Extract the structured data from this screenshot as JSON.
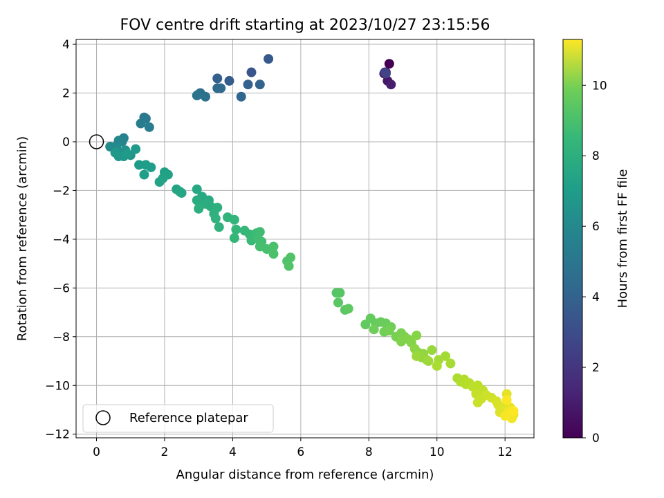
{
  "chart_data": {
    "type": "scatter",
    "title": "FOV centre drift starting at 2023/10/27 23:15:56",
    "xlabel": "Angular distance from reference (arcmin)",
    "ylabel": "Rotation from reference (arcmin)",
    "xlim": [
      -0.6,
      12.85
    ],
    "ylim": [
      -12.15,
      4.2
    ],
    "xticks": [
      0,
      2,
      4,
      6,
      8,
      10,
      12
    ],
    "yticks": [
      -12,
      -10,
      -8,
      -6,
      -4,
      -2,
      0,
      2,
      4
    ],
    "grid": true,
    "colormap": "viridis",
    "colorbar": {
      "label": "Hours from first FF file",
      "min": 0,
      "max": 11.3,
      "ticks": [
        0,
        2,
        4,
        6,
        8,
        10
      ]
    },
    "reference_point": {
      "x": 0,
      "y": 0
    },
    "legend": {
      "position": "lower-left",
      "entries": [
        "Reference platepar"
      ]
    },
    "series": [
      {
        "points": [
          [
            8.6,
            3.2,
            0.0
          ],
          [
            8.5,
            2.85,
            0.3
          ],
          [
            8.45,
            2.8,
            0.5
          ],
          [
            8.55,
            2.5,
            0.7
          ],
          [
            8.65,
            2.35,
            0.9
          ],
          [
            8.47,
            2.85,
            2.0
          ],
          [
            8.5,
            2.8,
            2.3
          ],
          [
            4.55,
            2.85,
            3.0
          ],
          [
            5.05,
            3.4,
            3.2
          ],
          [
            3.9,
            2.5,
            3.3
          ],
          [
            3.55,
            2.6,
            3.4
          ],
          [
            4.45,
            2.35,
            3.5
          ],
          [
            4.8,
            2.35,
            3.6
          ],
          [
            4.25,
            1.85,
            3.7
          ],
          [
            3.55,
            2.2,
            3.8
          ],
          [
            3.65,
            2.2,
            3.9
          ],
          [
            3.0,
            1.95,
            4.0
          ],
          [
            3.05,
            2.0,
            4.1
          ],
          [
            3.2,
            1.85,
            4.2
          ],
          [
            2.95,
            1.9,
            4.3
          ],
          [
            1.4,
            1.0,
            4.5
          ],
          [
            1.45,
            0.95,
            4.6
          ],
          [
            1.3,
            0.75,
            4.7
          ],
          [
            1.55,
            0.6,
            4.8
          ],
          [
            0.8,
            0.15,
            5.0
          ],
          [
            0.75,
            0.0,
            5.1
          ],
          [
            0.65,
            0.05,
            5.2
          ],
          [
            0.55,
            -0.2,
            5.3
          ],
          [
            0.4,
            -0.2,
            5.4
          ],
          [
            0.6,
            -0.3,
            5.5
          ],
          [
            0.7,
            -0.5,
            5.6
          ],
          [
            0.85,
            -0.35,
            5.7
          ],
          [
            1.0,
            -0.55,
            5.8
          ],
          [
            0.65,
            -0.6,
            5.9
          ],
          [
            0.55,
            -0.45,
            6.0
          ],
          [
            0.8,
            -0.6,
            6.05
          ],
          [
            1.15,
            -0.3,
            6.1
          ],
          [
            0.9,
            -0.5,
            6.15
          ],
          [
            1.25,
            -0.95,
            6.2
          ],
          [
            1.45,
            -0.95,
            6.25
          ],
          [
            1.6,
            -1.05,
            6.3
          ],
          [
            1.4,
            -1.35,
            6.35
          ],
          [
            2.0,
            -1.25,
            6.4
          ],
          [
            2.1,
            -1.35,
            6.45
          ],
          [
            1.95,
            -1.5,
            6.5
          ],
          [
            1.85,
            -1.65,
            6.55
          ],
          [
            2.35,
            -1.95,
            6.6
          ],
          [
            2.45,
            -2.05,
            6.65
          ],
          [
            2.5,
            -2.1,
            6.7
          ],
          [
            2.95,
            -1.95,
            6.75
          ],
          [
            3.1,
            -2.25,
            6.8
          ],
          [
            3.3,
            -2.4,
            6.85
          ],
          [
            3.05,
            -2.6,
            6.9
          ],
          [
            2.95,
            -2.4,
            6.95
          ],
          [
            3.2,
            -2.55,
            7.0
          ],
          [
            3.35,
            -2.65,
            7.05
          ],
          [
            3.0,
            -2.75,
            7.1
          ],
          [
            3.55,
            -2.7,
            7.15
          ],
          [
            3.45,
            -2.95,
            7.2
          ],
          [
            3.5,
            -3.15,
            7.25
          ],
          [
            3.6,
            -3.5,
            7.3
          ],
          [
            3.85,
            -3.1,
            7.35
          ],
          [
            4.05,
            -3.2,
            7.4
          ],
          [
            4.1,
            -3.6,
            7.45
          ],
          [
            4.05,
            -3.95,
            7.5
          ],
          [
            4.35,
            -3.65,
            7.55
          ],
          [
            4.5,
            -3.8,
            7.6
          ],
          [
            4.55,
            -4.05,
            7.65
          ],
          [
            4.7,
            -3.75,
            7.7
          ],
          [
            4.8,
            -3.7,
            7.75
          ],
          [
            4.75,
            -4.0,
            7.8
          ],
          [
            4.85,
            -4.1,
            7.85
          ],
          [
            4.8,
            -4.3,
            7.9
          ],
          [
            5.0,
            -4.4,
            7.95
          ],
          [
            5.2,
            -4.3,
            8.0
          ],
          [
            5.2,
            -4.6,
            8.05
          ],
          [
            5.6,
            -4.9,
            8.1
          ],
          [
            5.7,
            -4.75,
            8.15
          ],
          [
            5.65,
            -5.1,
            8.2
          ],
          [
            7.05,
            -6.2,
            8.25
          ],
          [
            7.15,
            -6.2,
            8.3
          ],
          [
            7.1,
            -6.6,
            8.35
          ],
          [
            7.3,
            -6.9,
            8.4
          ],
          [
            7.4,
            -6.85,
            8.45
          ],
          [
            7.9,
            -7.5,
            8.5
          ],
          [
            8.05,
            -7.25,
            8.55
          ],
          [
            8.2,
            -7.45,
            8.6
          ],
          [
            8.35,
            -7.4,
            8.65
          ],
          [
            8.5,
            -7.45,
            8.7
          ],
          [
            8.65,
            -7.6,
            8.75
          ],
          [
            8.15,
            -7.7,
            8.8
          ],
          [
            8.45,
            -7.8,
            8.85
          ],
          [
            8.6,
            -7.75,
            8.9
          ],
          [
            8.8,
            -8.0,
            8.95
          ],
          [
            8.95,
            -7.85,
            9.0
          ],
          [
            9.05,
            -8.0,
            9.05
          ],
          [
            8.95,
            -8.2,
            9.1
          ],
          [
            9.15,
            -8.1,
            9.15
          ],
          [
            9.25,
            -8.25,
            9.2
          ],
          [
            9.4,
            -7.95,
            9.25
          ],
          [
            9.35,
            -8.5,
            9.3
          ],
          [
            9.45,
            -8.65,
            9.35
          ],
          [
            9.6,
            -8.7,
            9.4
          ],
          [
            9.55,
            -8.85,
            9.45
          ],
          [
            9.7,
            -8.95,
            9.5
          ],
          [
            9.85,
            -8.55,
            9.55
          ],
          [
            9.4,
            -8.8,
            9.6
          ],
          [
            9.75,
            -9.0,
            9.65
          ],
          [
            10.05,
            -8.95,
            9.7
          ],
          [
            10.25,
            -8.8,
            9.75
          ],
          [
            10.4,
            -9.1,
            9.8
          ],
          [
            10.0,
            -9.2,
            9.85
          ],
          [
            10.6,
            -9.7,
            9.9
          ],
          [
            10.7,
            -9.85,
            9.95
          ],
          [
            10.8,
            -9.75,
            10.0
          ],
          [
            10.85,
            -9.95,
            10.05
          ],
          [
            10.95,
            -9.9,
            10.1
          ],
          [
            11.05,
            -10.05,
            10.15
          ],
          [
            11.2,
            -10.0,
            10.2
          ],
          [
            11.35,
            -10.2,
            10.25
          ],
          [
            11.15,
            -10.35,
            10.3
          ],
          [
            11.3,
            -10.55,
            10.35
          ],
          [
            11.2,
            -10.7,
            10.4
          ],
          [
            11.45,
            -10.4,
            10.45
          ],
          [
            11.6,
            -10.5,
            10.5
          ],
          [
            11.75,
            -10.65,
            10.6
          ],
          [
            11.8,
            -10.8,
            10.65
          ],
          [
            11.9,
            -10.9,
            10.7
          ],
          [
            11.85,
            -11.1,
            10.75
          ],
          [
            12.0,
            -10.95,
            10.8
          ],
          [
            12.05,
            -10.35,
            10.85
          ],
          [
            12.15,
            -10.9,
            10.9
          ],
          [
            12.2,
            -11.0,
            10.95
          ],
          [
            12.25,
            -11.2,
            11.0
          ],
          [
            12.2,
            -11.35,
            11.1
          ],
          [
            12.1,
            -11.1,
            11.15
          ],
          [
            12.0,
            -11.25,
            11.2
          ],
          [
            12.05,
            -10.6,
            11.25
          ],
          [
            12.25,
            -11.05,
            11.3
          ]
        ]
      }
    ]
  }
}
